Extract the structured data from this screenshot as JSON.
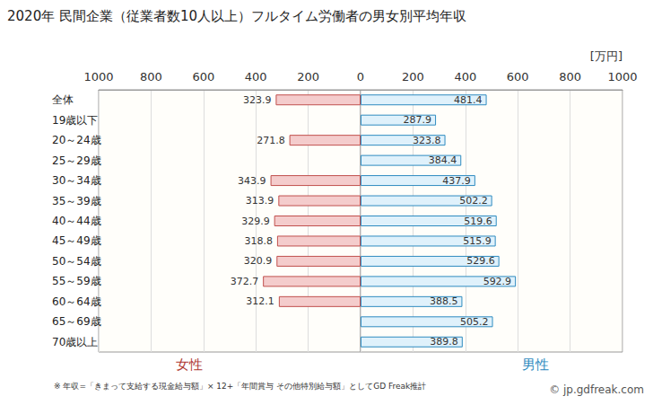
{
  "chart_data": {
    "type": "bar",
    "orientation": "horizontal",
    "title": "2020年 民間企業（従業者数10人以上）フルタイム労働者の男女別平均年収",
    "xlabel": "[万円]",
    "categories": [
      "全体",
      "19歳以下",
      "20～24歳",
      "25～29歳",
      "30～34歳",
      "35～39歳",
      "40～44歳",
      "45～49歳",
      "50～54歳",
      "55～59歳",
      "60～64歳",
      "65～69歳",
      "70歳以上"
    ],
    "series": [
      {
        "name": "女性",
        "color": "#f4cccc",
        "values": [
          323.9,
          null,
          271.8,
          null,
          343.9,
          313.9,
          329.9,
          318.8,
          320.9,
          372.7,
          312.1,
          null,
          null
        ]
      },
      {
        "name": "男性",
        "color": "#dff1fb",
        "values": [
          481.4,
          287.9,
          323.8,
          384.4,
          437.9,
          502.2,
          519.6,
          515.9,
          529.6,
          592.9,
          388.5,
          505.2,
          389.8
        ]
      }
    ],
    "xlim": [
      0,
      1000
    ],
    "xticks": [
      0,
      200,
      400,
      600,
      800,
      1000
    ],
    "grid": true,
    "data_labels": true,
    "annotations": [
      "※ 年収=「きまって支給する現金給与額」× 12+「年間賞与 その他特別給与額」としてGD Freak推計",
      "© jp.gdfreak.com"
    ]
  }
}
